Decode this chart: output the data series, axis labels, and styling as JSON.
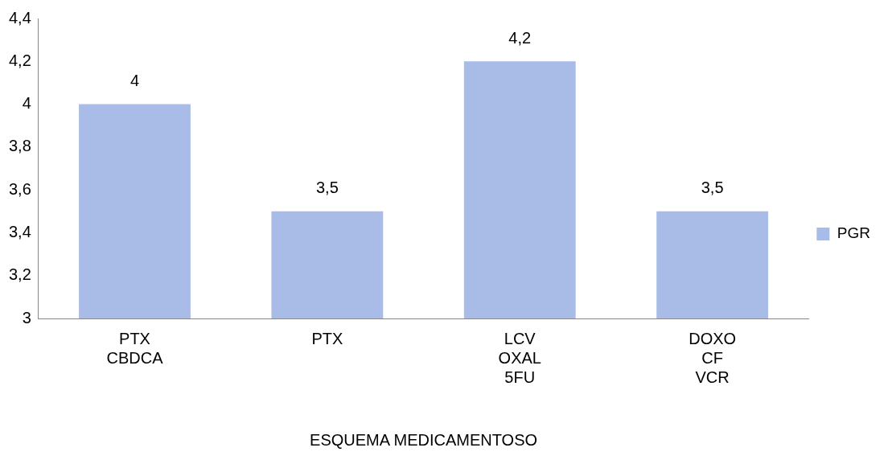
{
  "chart_data": {
    "type": "bar",
    "xlabel": "ESQUEMA MEDICAMENTOSO",
    "categories": [
      "PTX\nCBDCA",
      "PTX",
      "LCV\nOXAL\n5FU",
      "DOXO\nCF\nVCR"
    ],
    "series": [
      {
        "name": "PGR",
        "color": "#a9bce8",
        "values": [
          4,
          3.5,
          4.2,
          3.5
        ],
        "value_labels": [
          "4",
          "3,5",
          "4,2",
          "3,5"
        ]
      }
    ],
    "ylim": [
      3,
      4.4
    ],
    "yticks": [
      {
        "value": 3,
        "label": "3"
      },
      {
        "value": 3.2,
        "label": "3,2"
      },
      {
        "value": 3.4,
        "label": "3,4"
      },
      {
        "value": 3.6,
        "label": "3,6"
      },
      {
        "value": 3.8,
        "label": "3,8"
      },
      {
        "value": 4,
        "label": "4"
      },
      {
        "value": 4.2,
        "label": "4,2"
      },
      {
        "value": 4.4,
        "label": "4,4"
      }
    ],
    "grid": false,
    "legend": "right"
  }
}
